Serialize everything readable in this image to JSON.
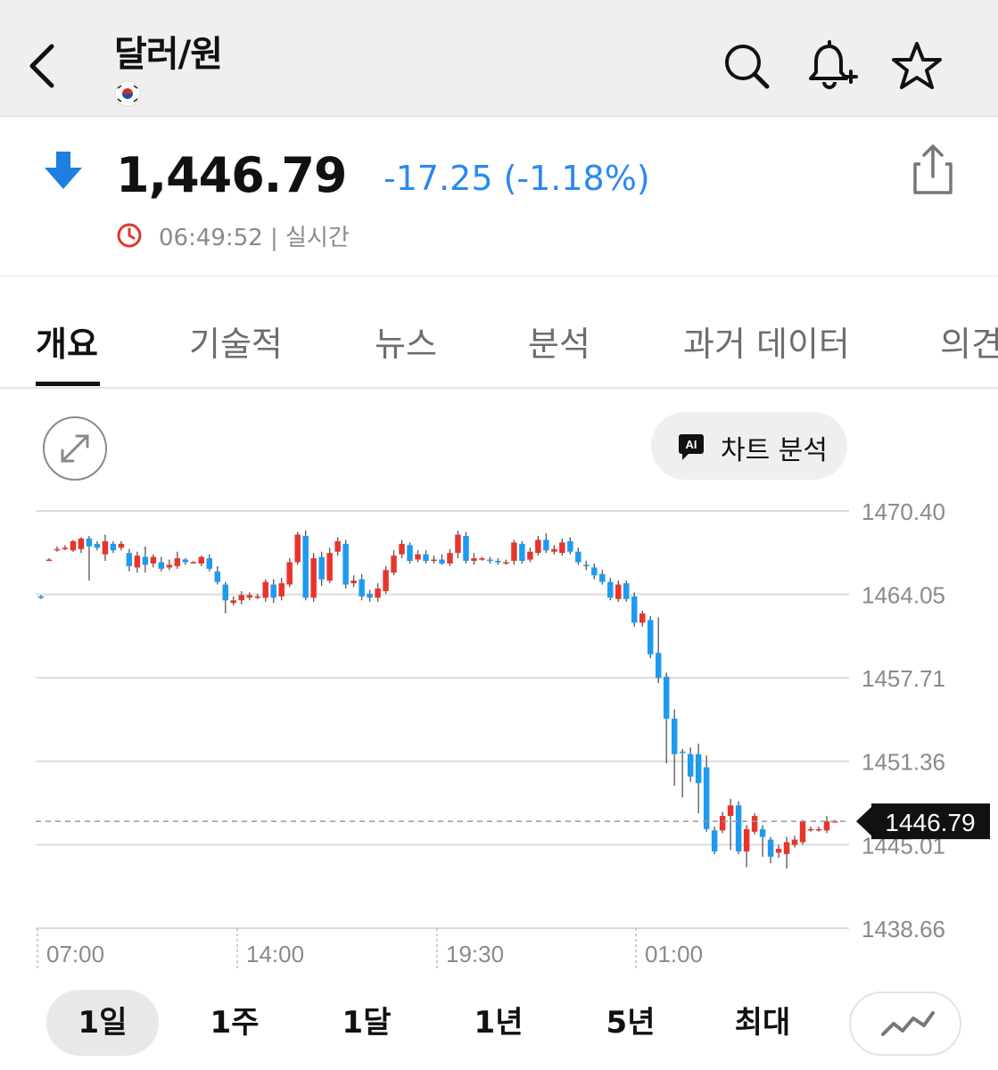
{
  "header": {
    "title": "달러/원",
    "icons": [
      "back-icon",
      "korea-flag-icon",
      "search-icon",
      "add-alert-bell-icon",
      "star-icon"
    ]
  },
  "quote": {
    "price": "1,446.79",
    "change": "-17.25 (-1.18%)",
    "time": "06:49:52 | 실시간",
    "direction_icon": "arrow-down-icon",
    "change_color": "#2a89f0"
  },
  "tabs": [
    "개요",
    "기술적",
    "뉴스",
    "분석",
    "과거 데이터",
    "의견"
  ],
  "chart_toolbar": {
    "ai_badge": "AI",
    "ai_label": "차트 분석"
  },
  "chart_data": {
    "type": "candlestick",
    "ylim": [
      1438.66,
      1470.4
    ],
    "y_ticks": [
      "1470.40",
      "1464.05",
      "1457.71",
      "1451.36",
      "1445.01",
      "1438.66"
    ],
    "x_ticks": [
      "07:00",
      "14:00",
      "19:30",
      "01:00"
    ],
    "last_price": 1446.79,
    "last_price_label": "1446.79",
    "up_color": "#e8352b",
    "down_color": "#1e9bf0",
    "candles": [
      [
        1463.9,
        1463.8,
        1464.0,
        1463.7
      ],
      [
        1466.7,
        1466.7,
        1466.8,
        1466.6
      ],
      [
        1467.4,
        1467.5,
        1467.7,
        1467.3
      ],
      [
        1467.6,
        1467.6,
        1467.8,
        1467.4
      ],
      [
        1467.4,
        1468.1,
        1468.2,
        1467.3
      ],
      [
        1467.5,
        1468.3,
        1468.4,
        1467.2
      ],
      [
        1468.3,
        1467.7,
        1468.5,
        1465.1
      ],
      [
        1467.9,
        1467.6,
        1468.1,
        1467.4
      ],
      [
        1467.1,
        1468.1,
        1468.6,
        1466.6
      ],
      [
        1467.9,
        1467.4,
        1468.1,
        1467.2
      ],
      [
        1467.6,
        1467.9,
        1468.1,
        1467.4
      ],
      [
        1467.2,
        1466.2,
        1467.5,
        1465.8
      ],
      [
        1466.1,
        1467.0,
        1467.3,
        1465.7
      ],
      [
        1466.9,
        1466.3,
        1467.7,
        1465.7
      ],
      [
        1466.4,
        1466.9,
        1467.1,
        1466.1
      ],
      [
        1466.5,
        1466.0,
        1466.9,
        1465.8
      ],
      [
        1466.1,
        1466.3,
        1466.7,
        1465.9
      ],
      [
        1466.2,
        1466.8,
        1467.3,
        1466.0
      ],
      [
        1466.7,
        1466.5,
        1466.8,
        1466.3
      ],
      [
        1466.5,
        1466.5,
        1466.6,
        1466.4
      ],
      [
        1466.4,
        1466.9,
        1467.0,
        1466.2
      ],
      [
        1466.8,
        1466.0,
        1467.1,
        1465.8
      ],
      [
        1465.8,
        1465.0,
        1466.2,
        1464.8
      ],
      [
        1464.8,
        1463.6,
        1465.0,
        1462.6
      ],
      [
        1463.4,
        1463.6,
        1463.9,
        1463.2
      ],
      [
        1463.6,
        1464.0,
        1464.3,
        1463.3
      ],
      [
        1463.8,
        1464.0,
        1464.2,
        1463.6
      ],
      [
        1463.9,
        1463.9,
        1464.1,
        1463.7
      ],
      [
        1463.8,
        1465.0,
        1465.2,
        1463.5
      ],
      [
        1464.8,
        1463.8,
        1465.2,
        1463.4
      ],
      [
        1463.9,
        1464.9,
        1465.3,
        1463.6
      ],
      [
        1464.8,
        1466.5,
        1466.8,
        1464.6
      ],
      [
        1466.5,
        1468.6,
        1468.8,
        1466.3
      ],
      [
        1468.5,
        1463.8,
        1468.9,
        1463.6
      ],
      [
        1463.8,
        1466.8,
        1467.2,
        1463.5
      ],
      [
        1466.9,
        1465.2,
        1467.3,
        1464.7
      ],
      [
        1465.1,
        1467.2,
        1467.6,
        1464.9
      ],
      [
        1467.3,
        1468.1,
        1468.4,
        1467.0
      ],
      [
        1467.9,
        1464.8,
        1468.2,
        1464.5
      ],
      [
        1464.9,
        1465.1,
        1465.5,
        1464.6
      ],
      [
        1465.2,
        1463.9,
        1465.6,
        1463.6
      ],
      [
        1464.1,
        1463.8,
        1464.4,
        1463.5
      ],
      [
        1463.8,
        1464.5,
        1464.9,
        1463.5
      ],
      [
        1464.3,
        1465.9,
        1466.2,
        1464.1
      ],
      [
        1465.7,
        1467.0,
        1467.4,
        1465.5
      ],
      [
        1467.1,
        1467.9,
        1468.2,
        1466.8
      ],
      [
        1467.8,
        1466.6,
        1468.0,
        1466.4
      ],
      [
        1466.7,
        1467.1,
        1467.4,
        1466.5
      ],
      [
        1467.1,
        1466.6,
        1467.4,
        1466.4
      ],
      [
        1466.6,
        1466.7,
        1467.0,
        1466.4
      ],
      [
        1466.7,
        1466.4,
        1467.1,
        1466.3
      ],
      [
        1466.4,
        1467.2,
        1467.5,
        1466.2
      ],
      [
        1467.2,
        1468.6,
        1468.9,
        1466.8
      ],
      [
        1468.5,
        1466.6,
        1468.8,
        1466.4
      ],
      [
        1466.6,
        1466.8,
        1467.2,
        1466.3
      ],
      [
        1466.8,
        1466.8,
        1466.9,
        1466.6
      ],
      [
        1466.7,
        1466.6,
        1466.9,
        1466.4
      ],
      [
        1466.6,
        1466.5,
        1466.8,
        1466.3
      ],
      [
        1466.5,
        1466.5,
        1466.7,
        1466.3
      ],
      [
        1466.6,
        1468.0,
        1468.2,
        1466.3
      ],
      [
        1467.9,
        1466.6,
        1468.1,
        1466.4
      ],
      [
        1466.7,
        1467.3,
        1467.6,
        1466.5
      ],
      [
        1467.2,
        1468.2,
        1468.5,
        1467.0
      ],
      [
        1468.2,
        1467.4,
        1468.7,
        1467.2
      ],
      [
        1467.3,
        1467.5,
        1467.8,
        1467.1
      ],
      [
        1467.2,
        1468.0,
        1468.3,
        1467.0
      ],
      [
        1468.1,
        1467.3,
        1468.4,
        1467.1
      ],
      [
        1467.3,
        1466.5,
        1467.6,
        1466.3
      ],
      [
        1466.3,
        1466.2,
        1466.6,
        1465.9
      ],
      [
        1466.1,
        1465.5,
        1466.4,
        1465.2
      ],
      [
        1465.6,
        1465.0,
        1465.9,
        1464.8
      ],
      [
        1465.0,
        1463.8,
        1465.3,
        1463.6
      ],
      [
        1463.7,
        1464.8,
        1465.1,
        1463.5
      ],
      [
        1464.9,
        1463.7,
        1465.1,
        1463.5
      ],
      [
        1463.9,
        1461.9,
        1464.2,
        1461.6
      ],
      [
        1461.9,
        1462.6,
        1462.8,
        1461.6
      ],
      [
        1462.1,
        1459.5,
        1462.4,
        1459.2
      ],
      [
        1459.6,
        1457.7,
        1462.3,
        1457.3
      ],
      [
        1457.8,
        1454.6,
        1458.1,
        1451.2
      ],
      [
        1454.6,
        1451.9,
        1455.3,
        1449.5
      ],
      [
        1452.1,
        1452.0,
        1452.3,
        1448.6
      ],
      [
        1451.9,
        1450.2,
        1452.4,
        1449.8
      ],
      [
        1451.9,
        1449.7,
        1452.7,
        1447.4
      ],
      [
        1450.9,
        1446.2,
        1451.8,
        1446.0
      ],
      [
        1446.1,
        1444.5,
        1446.4,
        1444.3
      ],
      [
        1446.1,
        1447.2,
        1447.5,
        1445.9
      ],
      [
        1447.2,
        1448.0,
        1448.5,
        1444.6
      ],
      [
        1448.0,
        1444.5,
        1448.3,
        1444.3
      ],
      [
        1444.5,
        1446.2,
        1446.5,
        1443.3
      ],
      [
        1446.0,
        1447.2,
        1447.4,
        1445.8
      ],
      [
        1446.2,
        1445.6,
        1446.5,
        1444.1
      ],
      [
        1445.4,
        1444.1,
        1445.6,
        1443.6
      ],
      [
        1444.4,
        1444.7,
        1445.0,
        1444.0
      ],
      [
        1444.3,
        1445.2,
        1445.6,
        1443.2
      ],
      [
        1445.0,
        1445.4,
        1445.7,
        1444.8
      ],
      [
        1445.2,
        1446.8,
        1446.9,
        1445.0
      ],
      [
        1446.2,
        1446.2,
        1446.4,
        1446.0
      ],
      [
        1446.2,
        1446.2,
        1446.4,
        1446.0
      ],
      [
        1446.1,
        1446.8,
        1447.2,
        1445.9
      ],
      [
        1446.8,
        1446.8,
        1446.9,
        1446.7
      ]
    ]
  },
  "ranges": [
    {
      "label": "1일",
      "selected": true
    },
    {
      "label": "1주",
      "selected": false
    },
    {
      "label": "1달",
      "selected": false
    },
    {
      "label": "1년",
      "selected": false
    },
    {
      "label": "5년",
      "selected": false
    },
    {
      "label": "최대",
      "selected": false
    }
  ]
}
